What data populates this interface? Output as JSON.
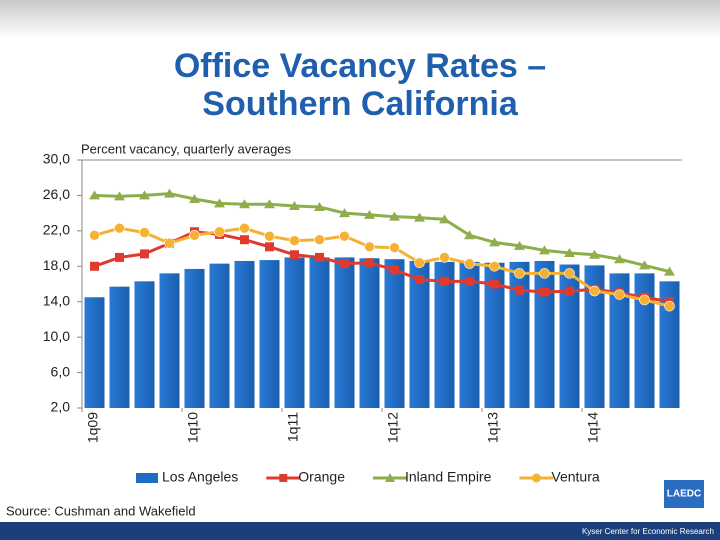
{
  "chart_data": {
    "type": "bar-line",
    "title": "Office Vacancy Rates – Southern California",
    "subtitle": "Percent vacancy, quarterly averages",
    "source": "Source: Cushman and Wakefield",
    "footer": "Kyser Center for Economic Research",
    "logo": "LAEDC",
    "categories": [
      "1q09",
      null,
      null,
      null,
      "1q10",
      null,
      null,
      null,
      "1q11",
      null,
      null,
      null,
      "1q12",
      null,
      null,
      null,
      "1q13",
      null,
      null,
      null,
      "1q14",
      null,
      null,
      null
    ],
    "ylim": [
      2,
      30
    ],
    "yticks": [
      {
        "value": 2,
        "label": "2,0"
      },
      {
        "value": 6,
        "label": "6,0"
      },
      {
        "value": 10,
        "label": "10,0"
      },
      {
        "value": 14,
        "label": "14,0"
      },
      {
        "value": 18,
        "label": "18,0"
      },
      {
        "value": 22,
        "label": "22,0"
      },
      {
        "value": 26,
        "label": "26,0"
      },
      {
        "value": 30,
        "label": "30,0"
      }
    ],
    "grid": false,
    "legend": "bottom",
    "series": [
      {
        "name": "Los Angeles",
        "type": "bar",
        "color": "#1f6cc4",
        "values": [
          14.5,
          15.7,
          16.3,
          17.2,
          17.7,
          18.3,
          18.6,
          18.7,
          19.0,
          19.0,
          19.0,
          18.9,
          18.8,
          18.6,
          18.5,
          18.5,
          18.4,
          18.5,
          18.6,
          18.2,
          18.1,
          17.2,
          17.2,
          16.3
        ]
      },
      {
        "name": "Orange",
        "type": "line",
        "marker": "square",
        "color": "#e03a2e",
        "values": [
          18.0,
          19.0,
          19.4,
          20.6,
          21.9,
          21.6,
          21.0,
          20.2,
          19.3,
          19.0,
          18.3,
          18.4,
          17.6,
          16.5,
          16.3,
          16.3,
          16.0,
          15.3,
          15.1,
          15.2,
          15.4,
          15.0,
          14.5,
          14.0
        ]
      },
      {
        "name": "Inland Empire",
        "type": "line",
        "marker": "triangle",
        "color": "#8eae4c",
        "values": [
          26.0,
          25.9,
          26.0,
          26.2,
          25.6,
          25.1,
          25.0,
          25.0,
          24.8,
          24.7,
          24.0,
          23.8,
          23.6,
          23.5,
          23.3,
          21.5,
          20.7,
          20.3,
          19.8,
          19.5,
          19.3,
          18.8,
          18.1,
          17.4
        ]
      },
      {
        "name": "Ventura",
        "type": "line",
        "marker": "circle",
        "color": "#f5b134",
        "values": [
          21.5,
          22.3,
          21.8,
          20.6,
          21.5,
          21.9,
          22.3,
          21.4,
          20.9,
          21.0,
          21.4,
          20.2,
          20.1,
          18.4,
          19.0,
          18.3,
          18.0,
          17.2,
          17.2,
          17.2,
          15.2,
          14.8,
          14.2,
          13.5
        ]
      }
    ]
  }
}
